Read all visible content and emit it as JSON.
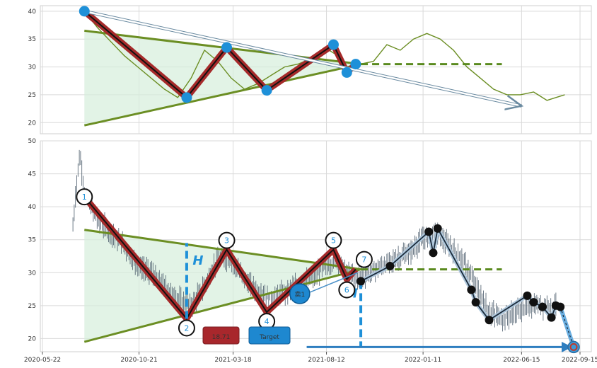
{
  "chart_data": [
    {
      "type": "line",
      "panel": "overview",
      "ylim": [
        18,
        41
      ],
      "yticks": [
        "20",
        "25",
        "30",
        "35",
        "40"
      ],
      "grid": true,
      "series": [
        {
          "role": "price",
          "color": "#6b8e23",
          "x": [
            "2020-07-27",
            "2020-08-17",
            "2020-09-07",
            "2020-09-28",
            "2020-10-19",
            "2020-11-09",
            "2020-11-30",
            "2020-12-21",
            "2021-01-11",
            "2021-02-01",
            "2021-02-22",
            "2021-03-15",
            "2021-04-05",
            "2021-04-26",
            "2021-05-17",
            "2021-06-07",
            "2021-06-28",
            "2021-07-19",
            "2021-08-09",
            "2021-08-30",
            "2021-09-13",
            "2021-09-20",
            "2021-10-04",
            "2021-10-25",
            "2021-11-15",
            "2021-12-06",
            "2021-12-27",
            "2022-01-17",
            "2022-02-07",
            "2022-02-28",
            "2022-03-21",
            "2022-04-11",
            "2022-05-02",
            "2022-05-23",
            "2022-06-13",
            "2022-07-04",
            "2022-07-25",
            "2022-08-08",
            "2022-08-22"
          ],
          "y": [
            40,
            37,
            34.5,
            32,
            30,
            28,
            26,
            24.5,
            28,
            33,
            31,
            28,
            26,
            27,
            28.5,
            30,
            30.5,
            31.5,
            33.5,
            32,
            29,
            30,
            30.5,
            31,
            34,
            33,
            35,
            36,
            35,
            33,
            30,
            28,
            26,
            25,
            25,
            25.5,
            24,
            24.5,
            25
          ]
        }
      ],
      "wave_points": {
        "x": [
          "2020-07-27",
          "2021-01-04",
          "2021-03-08",
          "2021-05-10",
          "2021-08-23",
          "2021-09-13",
          "2021-09-27"
        ],
        "y": [
          40,
          24.5,
          33.5,
          25.8,
          34,
          29,
          30.5
        ]
      },
      "trendlines": [
        {
          "role": "upper",
          "x": [
            "2020-07-27",
            "2021-10-05"
          ],
          "y": [
            36.5,
            30.5
          ]
        },
        {
          "role": "lower",
          "x": [
            "2020-07-27",
            "2021-10-05"
          ],
          "y": [
            19.5,
            30.5
          ]
        },
        {
          "role": "breakout-level",
          "x": [
            "2021-10-05",
            "2022-05-15"
          ],
          "y": [
            30.5,
            30.5
          ]
        },
        {
          "role": "projection-arrow",
          "x": [
            "2020-07-27",
            "2022-06-15"
          ],
          "y": [
            40,
            23
          ]
        }
      ]
    },
    {
      "type": "line",
      "panel": "detail",
      "ylim": [
        18,
        50
      ],
      "yticks": [
        "20",
        "25",
        "30",
        "35",
        "40",
        "45",
        "50"
      ],
      "xticks": [
        "2020-05-22",
        "2020-10-21",
        "2021-03-18",
        "2021-08-12",
        "2022-01-11",
        "2022-06-15",
        "2022-09-15"
      ],
      "grid": true,
      "series": [
        {
          "role": "price",
          "color": "#4a5a6a",
          "x": [
            "2020-07-09",
            "2020-07-16",
            "2020-07-20",
            "2020-07-27",
            "2020-08-17",
            "2020-09-07",
            "2020-09-28",
            "2020-10-19",
            "2020-11-09",
            "2020-11-30",
            "2020-12-21",
            "2021-01-11",
            "2021-02-01",
            "2021-02-22",
            "2021-03-15",
            "2021-04-05",
            "2021-04-26",
            "2021-05-17",
            "2021-06-07",
            "2021-06-28",
            "2021-07-19",
            "2021-08-09",
            "2021-08-30",
            "2021-09-13",
            "2021-09-27",
            "2021-10-18",
            "2021-11-08",
            "2021-11-29",
            "2021-12-20",
            "2022-01-10",
            "2022-01-31",
            "2022-02-21",
            "2022-03-14",
            "2022-04-04",
            "2022-04-25",
            "2022-05-16",
            "2022-06-06",
            "2022-06-27",
            "2022-07-18",
            "2022-08-08"
          ],
          "y": [
            37,
            45,
            48,
            42,
            38,
            36,
            34,
            31,
            30,
            28,
            26,
            25,
            28,
            32,
            32,
            29,
            27,
            26,
            27,
            28,
            29,
            31,
            32,
            30,
            29,
            30,
            31,
            32,
            33,
            35,
            36,
            34,
            32,
            28,
            24,
            23,
            24,
            25,
            25,
            25
          ]
        }
      ],
      "wave_points": {
        "labels": [
          "1",
          "2",
          "3",
          "4",
          "5",
          "6",
          "7"
        ],
        "x": [
          "2020-07-27",
          "2021-01-04",
          "2021-03-08",
          "2021-05-10",
          "2021-08-23",
          "2021-09-13",
          "2021-09-27"
        ],
        "y": [
          41.5,
          23,
          33.5,
          24,
          33.5,
          29,
          30.5
        ]
      },
      "breakout_point": {
        "x": "2021-10-05",
        "y": 28.7
      },
      "future_path": {
        "x": [
          "2021-10-05",
          "2021-11-20",
          "2022-01-20",
          "2022-01-27",
          "2022-02-03",
          "2022-03-28",
          "2022-04-04",
          "2022-04-25",
          "2022-06-24",
          "2022-07-04",
          "2022-07-18",
          "2022-08-01",
          "2022-08-08",
          "2022-08-15"
        ],
        "y": [
          28.7,
          31,
          36.2,
          33,
          36.7,
          27.4,
          25.5,
          22.8,
          26.5,
          25.5,
          24.8,
          23.2,
          25,
          24.8
        ]
      },
      "target_path": {
        "x": [
          "2022-08-15",
          "2022-09-05"
        ],
        "y": [
          24.8,
          18.71
        ]
      },
      "trendlines": [
        {
          "role": "upper",
          "x": [
            "2020-07-27",
            "2021-10-05"
          ],
          "y": [
            36.5,
            30.5
          ]
        },
        {
          "role": "lower",
          "x": [
            "2020-07-27",
            "2021-10-05"
          ],
          "y": [
            19.5,
            30.5
          ]
        },
        {
          "role": "breakout-level",
          "x": [
            "2021-10-05",
            "2022-05-15"
          ],
          "y": [
            30.5,
            30.5
          ]
        },
        {
          "role": "height-1",
          "x": [
            "2021-01-04",
            "2021-01-04"
          ],
          "y": [
            23,
            34.5
          ]
        },
        {
          "role": "height-2",
          "x": [
            "2021-10-05",
            "2021-10-05"
          ],
          "y": [
            28.7,
            18.71
          ]
        },
        {
          "role": "target-arrow",
          "x": [
            "2021-08-12",
            "2022-09-01"
          ],
          "y": [
            18.71,
            18.71
          ]
        }
      ],
      "annotations": {
        "height_label": "H",
        "sell_label": "卖1",
        "target_value": "18.71",
        "target_label": "Target"
      }
    }
  ]
}
